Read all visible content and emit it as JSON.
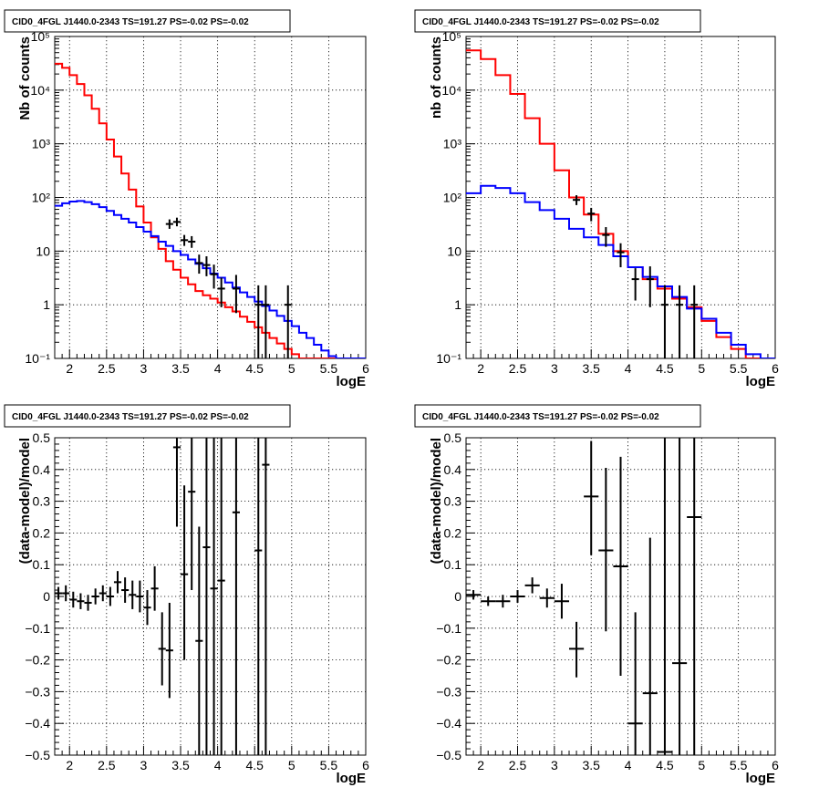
{
  "chart_data": [
    {
      "type": "line",
      "title": "CID0_4FGL J1440.0-2343 TS=191.27 PS=-0.02 PS=-0.02",
      "xlabel": "logE",
      "ylabel": "Nb of counts",
      "xlim": [
        1.8,
        6.0
      ],
      "ylim": [
        0.1,
        100000
      ],
      "yscale": "log",
      "grid": true,
      "x_ticks": [
        "2",
        "2.5",
        "3",
        "3.5",
        "4",
        "4.5",
        "5",
        "5.5",
        "6"
      ],
      "y_ticks": [
        "10⁻¹",
        "1",
        "10",
        "10²",
        "10³",
        "10⁴",
        "10⁵"
      ],
      "series": [
        {
          "color": "#ff0000",
          "style": "step",
          "edges": [
            1.8,
            1.9,
            2.0,
            2.1,
            2.2,
            2.3,
            2.4,
            2.5,
            2.6,
            2.7,
            2.8,
            2.9,
            3.0,
            3.1,
            3.2,
            3.3,
            3.4,
            3.5,
            3.6,
            3.7,
            3.8,
            3.9,
            4.0,
            4.1,
            4.2,
            4.3,
            4.4,
            4.5,
            4.6,
            4.7,
            4.8,
            4.9,
            5.0,
            5.1,
            5.2,
            5.3,
            5.4,
            5.5,
            5.6,
            5.7,
            5.8,
            5.9,
            6.0
          ],
          "values": [
            31000,
            26000,
            19000,
            13000,
            8000,
            4500,
            2400,
            1200,
            580,
            280,
            140,
            68,
            34,
            18,
            11,
            6.5,
            4.5,
            3.2,
            2.4,
            1.8,
            1.5,
            1.3,
            1.1,
            0.9,
            0.75,
            0.6,
            0.48,
            0.38,
            0.3,
            0.24,
            0.19,
            0.15,
            0.12,
            0.1,
            0.1,
            0.1,
            0.1,
            0.1,
            0.1,
            0.1,
            0.1,
            0.1
          ]
        },
        {
          "color": "#0000ff",
          "style": "step",
          "edges": [
            1.8,
            1.9,
            2.0,
            2.1,
            2.2,
            2.3,
            2.4,
            2.5,
            2.6,
            2.7,
            2.8,
            2.9,
            3.0,
            3.1,
            3.2,
            3.3,
            3.4,
            3.5,
            3.6,
            3.7,
            3.8,
            3.9,
            4.0,
            4.1,
            4.2,
            4.3,
            4.4,
            4.5,
            4.6,
            4.7,
            4.8,
            4.9,
            5.0,
            5.1,
            5.2,
            5.3,
            5.4,
            5.5,
            5.6,
            5.7,
            5.8,
            5.9,
            6.0
          ],
          "values": [
            70,
            78,
            84,
            86,
            82,
            75,
            66,
            56,
            47,
            40,
            34,
            28,
            23,
            19,
            15,
            12.5,
            10,
            8.5,
            7,
            5.8,
            4.8,
            3.8,
            3.2,
            2.6,
            2.1,
            1.7,
            1.4,
            1.15,
            0.95,
            0.78,
            0.62,
            0.5,
            0.4,
            0.3,
            0.24,
            0.18,
            0.14,
            0.11,
            0.1,
            0.1,
            0.1,
            0.1
          ]
        }
      ],
      "points": {
        "x": [
          3.35,
          3.45,
          3.55,
          3.65,
          3.75,
          3.85,
          3.95,
          4.05,
          4.25,
          4.55,
          4.65,
          4.95
        ],
        "y": [
          32,
          35,
          16,
          15,
          6,
          5.5,
          3.7,
          2.0,
          2.0,
          1,
          1,
          1
        ],
        "ylo": [
          26,
          29,
          12.5,
          11.5,
          3.8,
          3.4,
          2.0,
          0.9,
          0.7,
          0.1,
          0.1,
          0.1
        ],
        "yhi": [
          39,
          42,
          20,
          19,
          8.6,
          8,
          5.6,
          3.2,
          3.6,
          2.3,
          2.3,
          2.3
        ]
      }
    },
    {
      "type": "line",
      "title": "CID0_4FGL J1440.0-2343 TS=191.27 PS=-0.02 PS=-0.02",
      "xlabel": "logE",
      "ylabel": "nb of counts",
      "xlim": [
        1.8,
        6.0
      ],
      "ylim": [
        0.1,
        100000
      ],
      "yscale": "log",
      "grid": true,
      "x_ticks": [
        "2",
        "2.5",
        "3",
        "3.5",
        "4",
        "4.5",
        "5",
        "5.5",
        "6"
      ],
      "y_ticks": [
        "10⁻¹",
        "1",
        "10",
        "10²",
        "10³",
        "10⁴",
        "10⁵"
      ],
      "series": [
        {
          "color": "#ff0000",
          "style": "step",
          "edges": [
            1.8,
            2.0,
            2.2,
            2.4,
            2.6,
            2.8,
            3.0,
            3.2,
            3.4,
            3.6,
            3.8,
            4.0,
            4.2,
            4.4,
            4.6,
            4.8,
            5.0,
            5.2,
            5.4,
            5.6,
            5.8,
            6.0
          ],
          "values": [
            55000,
            38000,
            19000,
            8500,
            3000,
            1000,
            320,
            100,
            48,
            21,
            10,
            5,
            3,
            2,
            1.3,
            0.9,
            0.5,
            0.25,
            0.15,
            0.1,
            0.1
          ]
        },
        {
          "color": "#0000ff",
          "style": "step",
          "edges": [
            1.8,
            2.0,
            2.2,
            2.4,
            2.6,
            2.8,
            3.0,
            3.2,
            3.4,
            3.6,
            3.8,
            4.0,
            4.2,
            4.4,
            4.6,
            4.8,
            5.0,
            5.2,
            5.4,
            5.6,
            5.8,
            6.0
          ],
          "values": [
            120,
            165,
            150,
            120,
            82,
            58,
            40,
            26,
            18,
            13,
            8,
            5,
            3.3,
            2.2,
            1.4,
            0.85,
            0.55,
            0.3,
            0.18,
            0.12,
            0.1
          ]
        }
      ],
      "points": {
        "x": [
          3.3,
          3.5,
          3.7,
          3.9,
          4.1,
          4.3,
          4.5,
          4.7,
          4.9
        ],
        "y": [
          90,
          50,
          20,
          9.5,
          3,
          3,
          1,
          1,
          1
        ],
        "ylo": [
          72,
          36,
          12,
          5,
          1.2,
          0.9,
          0.1,
          0.1,
          0.1
        ],
        "yhi": [
          110,
          64,
          28,
          14,
          4.8,
          5.2,
          2.3,
          2.3,
          2.3
        ]
      }
    },
    {
      "type": "scatter",
      "title": "CID0_4FGL J1440.0-2343 TS=191.27 PS=-0.02 PS=-0.02",
      "xlabel": "logE",
      "ylabel": "(data-model)/model",
      "xlim": [
        1.8,
        6.0
      ],
      "ylim": [
        -0.5,
        0.5
      ],
      "grid": true,
      "x_ticks": [
        "2",
        "2.5",
        "3",
        "3.5",
        "4",
        "4.5",
        "5",
        "5.5",
        "6"
      ],
      "y_ticks": [
        "−0.5",
        "−0.4",
        "−0.3",
        "−0.2",
        "−0.1",
        "0",
        "0.1",
        "0.2",
        "0.3",
        "0.4",
        "0.5"
      ],
      "points": {
        "x": [
          1.85,
          1.95,
          2.05,
          2.15,
          2.25,
          2.35,
          2.45,
          2.55,
          2.65,
          2.75,
          2.85,
          2.95,
          3.05,
          3.15,
          3.25,
          3.35,
          3.45,
          3.55,
          3.65,
          3.75,
          3.85,
          3.95,
          4.05,
          4.25,
          4.55,
          4.65
        ],
        "y": [
          0.01,
          0.01,
          -0.01,
          -0.015,
          -0.02,
          0.0,
          0.01,
          0.0,
          0.045,
          0.02,
          0.005,
          0.0,
          -0.035,
          0.025,
          -0.165,
          -0.17,
          0.47,
          0.07,
          0.33,
          -0.14,
          0.155,
          0.025,
          0.05,
          0.265,
          0.145,
          0.415
        ],
        "xerr": 0.05,
        "ylo": [
          -0.01,
          -0.015,
          -0.035,
          -0.04,
          -0.045,
          -0.025,
          -0.015,
          -0.03,
          0.01,
          -0.02,
          -0.04,
          -0.05,
          -0.09,
          -0.045,
          -0.28,
          -0.32,
          0.22,
          -0.2,
          0.02,
          -0.5,
          -0.5,
          -0.5,
          -0.5,
          -0.5,
          -0.5,
          -0.5
        ],
        "yhi": [
          0.03,
          0.035,
          0.015,
          0.01,
          0.005,
          0.025,
          0.035,
          0.03,
          0.08,
          0.06,
          0.05,
          0.05,
          0.02,
          0.095,
          -0.05,
          -0.02,
          0.5,
          0.35,
          0.5,
          0.22,
          0.5,
          0.5,
          0.5,
          0.5,
          0.5,
          0.5
        ]
      }
    },
    {
      "type": "scatter",
      "title": "CID0_4FGL J1440.0-2343 TS=191.27 PS=-0.02 PS=-0.02",
      "xlabel": "logE",
      "ylabel": "(data-model)/model",
      "xlim": [
        1.8,
        6.0
      ],
      "ylim": [
        -0.5,
        0.5
      ],
      "grid": true,
      "x_ticks": [
        "2",
        "2.5",
        "3",
        "3.5",
        "4",
        "4.5",
        "5",
        "5.5",
        "6"
      ],
      "y_ticks": [
        "−0.5",
        "−0.4",
        "−0.3",
        "−0.2",
        "−0.1",
        "0",
        "0.1",
        "0.2",
        "0.3",
        "0.4",
        "0.5"
      ],
      "points": {
        "x": [
          1.9,
          2.1,
          2.3,
          2.5,
          2.7,
          2.9,
          3.1,
          3.3,
          3.5,
          3.7,
          3.9,
          4.1,
          4.3,
          4.5,
          4.7,
          4.9
        ],
        "y": [
          0.005,
          -0.015,
          -0.015,
          0.0,
          0.035,
          -0.005,
          -0.015,
          -0.165,
          0.315,
          0.145,
          0.095,
          -0.4,
          -0.305,
          -0.49,
          -0.21,
          0.25
        ],
        "xerr": 0.1,
        "ylo": [
          -0.01,
          -0.03,
          -0.035,
          -0.02,
          0.01,
          -0.035,
          -0.07,
          -0.255,
          0.13,
          -0.11,
          -0.25,
          -0.5,
          -0.5,
          -0.5,
          -0.5,
          -0.5
        ],
        "yhi": [
          0.02,
          0.0,
          0.005,
          0.02,
          0.06,
          0.025,
          0.04,
          -0.08,
          0.49,
          0.405,
          0.44,
          -0.05,
          0.185,
          0.5,
          0.5,
          0.5
        ]
      }
    }
  ]
}
